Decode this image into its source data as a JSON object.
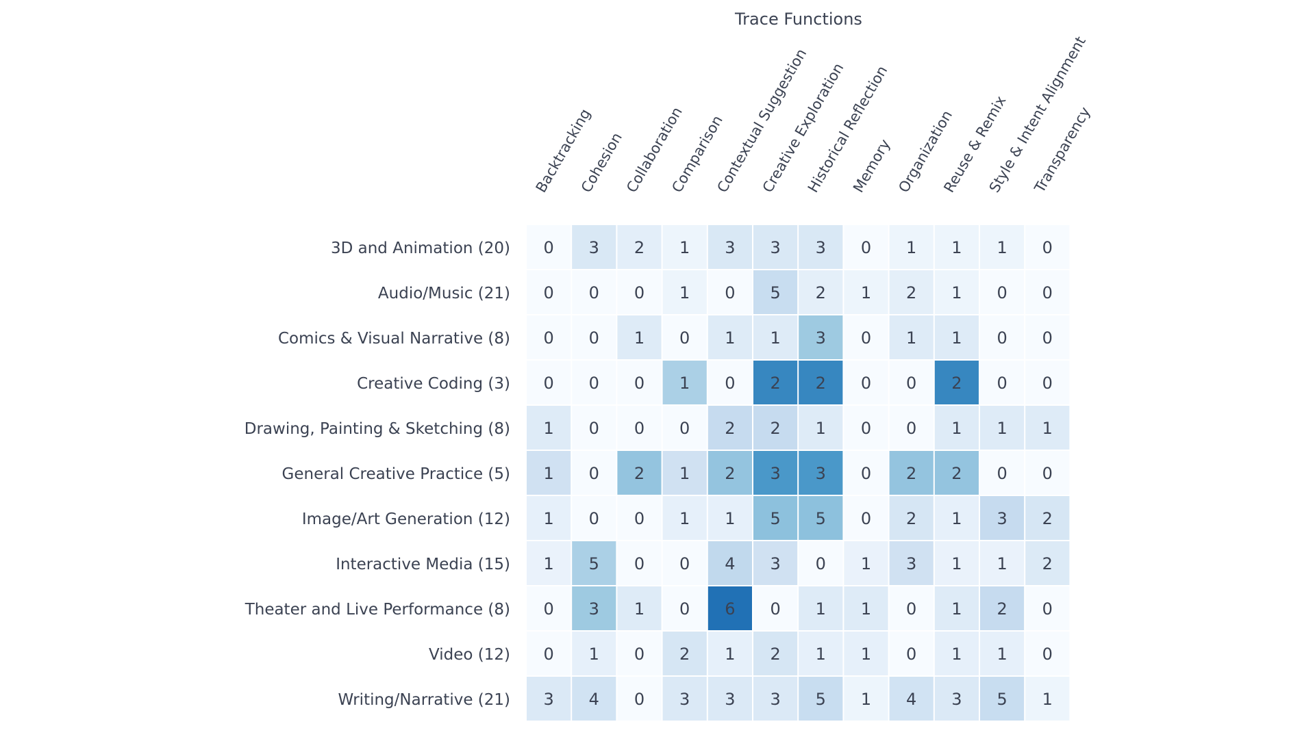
{
  "chart_data": {
    "type": "heatmap",
    "title": "Trace Functions",
    "color_scale": "Blues, normalized by row total",
    "columns": [
      "Backtracking",
      "Cohesion",
      "Collaboration",
      "Comparison",
      "Contextual Suggestion",
      "Creative Exploration",
      "Historical Reflection",
      "Memory",
      "Organization",
      "Reuse & Remix",
      "Style & Intent Alignment",
      "Transparency"
    ],
    "rows": [
      {
        "label": "3D and Animation (20)",
        "total": 20,
        "values": [
          0,
          3,
          2,
          1,
          3,
          3,
          3,
          0,
          1,
          1,
          1,
          0
        ]
      },
      {
        "label": "Audio/Music (21)",
        "total": 21,
        "values": [
          0,
          0,
          0,
          1,
          0,
          5,
          2,
          1,
          2,
          1,
          0,
          0
        ]
      },
      {
        "label": "Comics & Visual Narrative (8)",
        "total": 8,
        "values": [
          0,
          0,
          1,
          0,
          1,
          1,
          3,
          0,
          1,
          1,
          0,
          0
        ]
      },
      {
        "label": "Creative Coding (3)",
        "total": 3,
        "values": [
          0,
          0,
          0,
          1,
          0,
          2,
          2,
          0,
          0,
          2,
          0,
          0
        ]
      },
      {
        "label": "Drawing, Painting & Sketching (8)",
        "total": 8,
        "values": [
          1,
          0,
          0,
          0,
          2,
          2,
          1,
          0,
          0,
          1,
          1,
          1
        ]
      },
      {
        "label": "General Creative Practice (5)",
        "total": 5,
        "values": [
          1,
          0,
          2,
          1,
          2,
          3,
          3,
          0,
          2,
          2,
          0,
          0
        ]
      },
      {
        "label": "Image/Art Generation (12)",
        "total": 12,
        "values": [
          1,
          0,
          0,
          1,
          1,
          5,
          5,
          0,
          2,
          1,
          3,
          2
        ]
      },
      {
        "label": "Interactive Media (15)",
        "total": 15,
        "values": [
          1,
          5,
          0,
          0,
          4,
          3,
          0,
          1,
          3,
          1,
          1,
          2
        ]
      },
      {
        "label": "Theater and Live Performance (8)",
        "total": 8,
        "values": [
          0,
          3,
          1,
          0,
          6,
          0,
          1,
          1,
          0,
          1,
          2,
          0
        ]
      },
      {
        "label": "Video (12)",
        "total": 12,
        "values": [
          0,
          1,
          0,
          2,
          1,
          2,
          1,
          1,
          0,
          1,
          1,
          0
        ]
      },
      {
        "label": "Writing/Narrative (21)",
        "total": 21,
        "values": [
          3,
          4,
          0,
          3,
          3,
          3,
          5,
          1,
          4,
          3,
          5,
          1
        ]
      }
    ]
  }
}
